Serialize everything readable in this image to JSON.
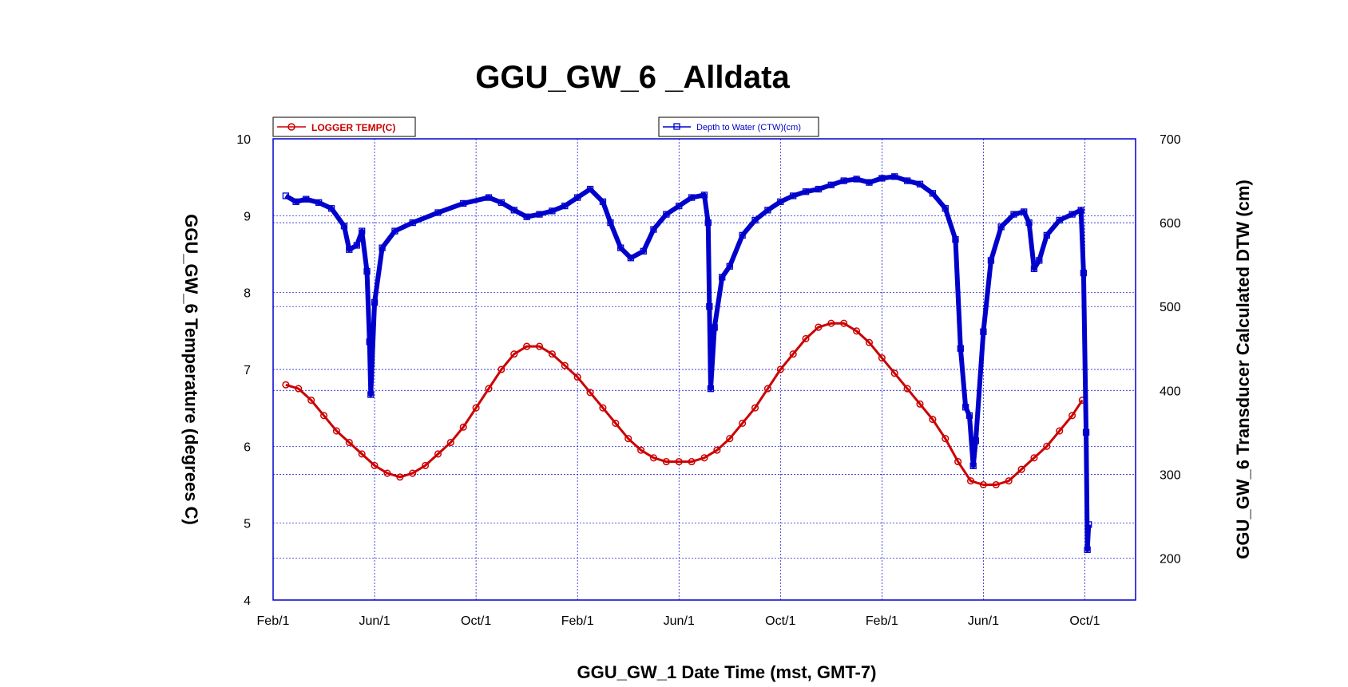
{
  "chart_data": {
    "type": "line",
    "title": "GGU_GW_6 _Alldata",
    "xlabel": "GGU_GW_1 Date Time (mst, GMT-7)",
    "ylabel": "GGU_GW_6 Temperature (degrees C)",
    "y2label": "GGU_GW_6 Transducer Calculated DTW (cm)",
    "ylim": [
      4,
      10
    ],
    "y2lim": [
      150,
      700
    ],
    "xlim": [
      0,
      34
    ],
    "x_unit": "months since Feb/1 of the first year",
    "yticks": [
      4,
      5,
      6,
      7,
      8,
      9,
      10
    ],
    "y2ticks": [
      200,
      300,
      400,
      500,
      600,
      700
    ],
    "xticks": [
      {
        "x": 0,
        "label": "Feb/1"
      },
      {
        "x": 4,
        "label": "Jun/1"
      },
      {
        "x": 8,
        "label": "Oct/1"
      },
      {
        "x": 12,
        "label": "Feb/1"
      },
      {
        "x": 16,
        "label": "Jun/1"
      },
      {
        "x": 20,
        "label": "Oct/1"
      },
      {
        "x": 24,
        "label": "Feb/1"
      },
      {
        "x": 28,
        "label": "Jun/1"
      },
      {
        "x": 32,
        "label": "Oct/1"
      }
    ],
    "grid": true,
    "legend": [
      {
        "name": "LOGGER TEMP(C)",
        "color": "#cc0000",
        "marker": "circle",
        "axis": "left"
      },
      {
        "name": "Depth to Water (CTW)(cm)",
        "color": "#0000cc",
        "marker": "square",
        "axis": "right"
      }
    ],
    "series": [
      {
        "name": "LOGGER TEMP(C)",
        "axis": "left",
        "color": "#cc0000",
        "points": [
          [
            0.5,
            6.8
          ],
          [
            1.0,
            6.75
          ],
          [
            1.5,
            6.6
          ],
          [
            2.0,
            6.4
          ],
          [
            2.5,
            6.2
          ],
          [
            3.0,
            6.05
          ],
          [
            3.5,
            5.9
          ],
          [
            4.0,
            5.75
          ],
          [
            4.5,
            5.65
          ],
          [
            5.0,
            5.6
          ],
          [
            5.5,
            5.65
          ],
          [
            6.0,
            5.75
          ],
          [
            6.5,
            5.9
          ],
          [
            7.0,
            6.05
          ],
          [
            7.5,
            6.25
          ],
          [
            8.0,
            6.5
          ],
          [
            8.5,
            6.75
          ],
          [
            9.0,
            7.0
          ],
          [
            9.5,
            7.2
          ],
          [
            10.0,
            7.3
          ],
          [
            10.5,
            7.3
          ],
          [
            11.0,
            7.2
          ],
          [
            11.5,
            7.05
          ],
          [
            12.0,
            6.9
          ],
          [
            12.5,
            6.7
          ],
          [
            13.0,
            6.5
          ],
          [
            13.5,
            6.3
          ],
          [
            14.0,
            6.1
          ],
          [
            14.5,
            5.95
          ],
          [
            15.0,
            5.85
          ],
          [
            15.5,
            5.8
          ],
          [
            16.0,
            5.8
          ],
          [
            16.5,
            5.8
          ],
          [
            17.0,
            5.85
          ],
          [
            17.5,
            5.95
          ],
          [
            18.0,
            6.1
          ],
          [
            18.5,
            6.3
          ],
          [
            19.0,
            6.5
          ],
          [
            19.5,
            6.75
          ],
          [
            20.0,
            7.0
          ],
          [
            20.5,
            7.2
          ],
          [
            21.0,
            7.4
          ],
          [
            21.5,
            7.55
          ],
          [
            22.0,
            7.6
          ],
          [
            22.5,
            7.6
          ],
          [
            23.0,
            7.5
          ],
          [
            23.5,
            7.35
          ],
          [
            24.0,
            7.15
          ],
          [
            24.5,
            6.95
          ],
          [
            25.0,
            6.75
          ],
          [
            25.5,
            6.55
          ],
          [
            26.0,
            6.35
          ],
          [
            26.5,
            6.1
          ],
          [
            27.0,
            5.8
          ],
          [
            27.5,
            5.55
          ],
          [
            28.0,
            5.5
          ],
          [
            28.5,
            5.5
          ],
          [
            29.0,
            5.55
          ],
          [
            29.5,
            5.7
          ],
          [
            30.0,
            5.85
          ],
          [
            30.5,
            6.0
          ],
          [
            31.0,
            6.2
          ],
          [
            31.5,
            6.4
          ],
          [
            31.9,
            6.6
          ]
        ]
      },
      {
        "name": "Depth to Water (CTW)(cm)",
        "axis": "right",
        "color": "#0000cc",
        "points": [
          [
            0.5,
            632
          ],
          [
            0.9,
            625
          ],
          [
            1.3,
            628
          ],
          [
            1.8,
            624
          ],
          [
            2.3,
            617
          ],
          [
            2.8,
            596
          ],
          [
            3.0,
            568
          ],
          [
            3.3,
            573
          ],
          [
            3.5,
            590
          ],
          [
            3.7,
            542
          ],
          [
            3.8,
            458
          ],
          [
            3.85,
            395
          ],
          [
            4.0,
            505
          ],
          [
            4.3,
            570
          ],
          [
            4.8,
            590
          ],
          [
            5.5,
            600
          ],
          [
            6.5,
            612
          ],
          [
            7.5,
            623
          ],
          [
            8.5,
            630
          ],
          [
            9.0,
            624
          ],
          [
            9.5,
            615
          ],
          [
            10.0,
            607
          ],
          [
            10.5,
            610
          ],
          [
            11.0,
            614
          ],
          [
            11.5,
            620
          ],
          [
            12.0,
            630
          ],
          [
            12.5,
            640
          ],
          [
            13.0,
            625
          ],
          [
            13.3,
            600
          ],
          [
            13.7,
            570
          ],
          [
            14.1,
            558
          ],
          [
            14.6,
            566
          ],
          [
            15.0,
            592
          ],
          [
            15.5,
            610
          ],
          [
            16.0,
            620
          ],
          [
            16.5,
            630
          ],
          [
            17.0,
            633
          ],
          [
            17.15,
            600
          ],
          [
            17.2,
            500
          ],
          [
            17.25,
            402
          ],
          [
            17.4,
            475
          ],
          [
            17.7,
            535
          ],
          [
            18.0,
            548
          ],
          [
            18.5,
            585
          ],
          [
            19.0,
            603
          ],
          [
            19.5,
            615
          ],
          [
            20.0,
            625
          ],
          [
            20.5,
            632
          ],
          [
            21.0,
            637
          ],
          [
            21.5,
            640
          ],
          [
            22.0,
            645
          ],
          [
            22.5,
            650
          ],
          [
            23.0,
            652
          ],
          [
            23.5,
            648
          ],
          [
            24.0,
            653
          ],
          [
            24.5,
            655
          ],
          [
            25.0,
            650
          ],
          [
            25.5,
            646
          ],
          [
            26.0,
            635
          ],
          [
            26.5,
            617
          ],
          [
            26.9,
            580
          ],
          [
            27.1,
            450
          ],
          [
            27.3,
            380
          ],
          [
            27.45,
            370
          ],
          [
            27.6,
            310
          ],
          [
            27.7,
            340
          ],
          [
            28.0,
            470
          ],
          [
            28.3,
            555
          ],
          [
            28.7,
            595
          ],
          [
            29.2,
            610
          ],
          [
            29.6,
            613
          ],
          [
            29.8,
            600
          ],
          [
            30.0,
            545
          ],
          [
            30.2,
            555
          ],
          [
            30.5,
            585
          ],
          [
            31.0,
            603
          ],
          [
            31.5,
            610
          ],
          [
            31.85,
            615
          ],
          [
            31.95,
            540
          ],
          [
            32.05,
            350
          ],
          [
            32.1,
            210
          ],
          [
            32.15,
            240
          ]
        ]
      }
    ]
  }
}
